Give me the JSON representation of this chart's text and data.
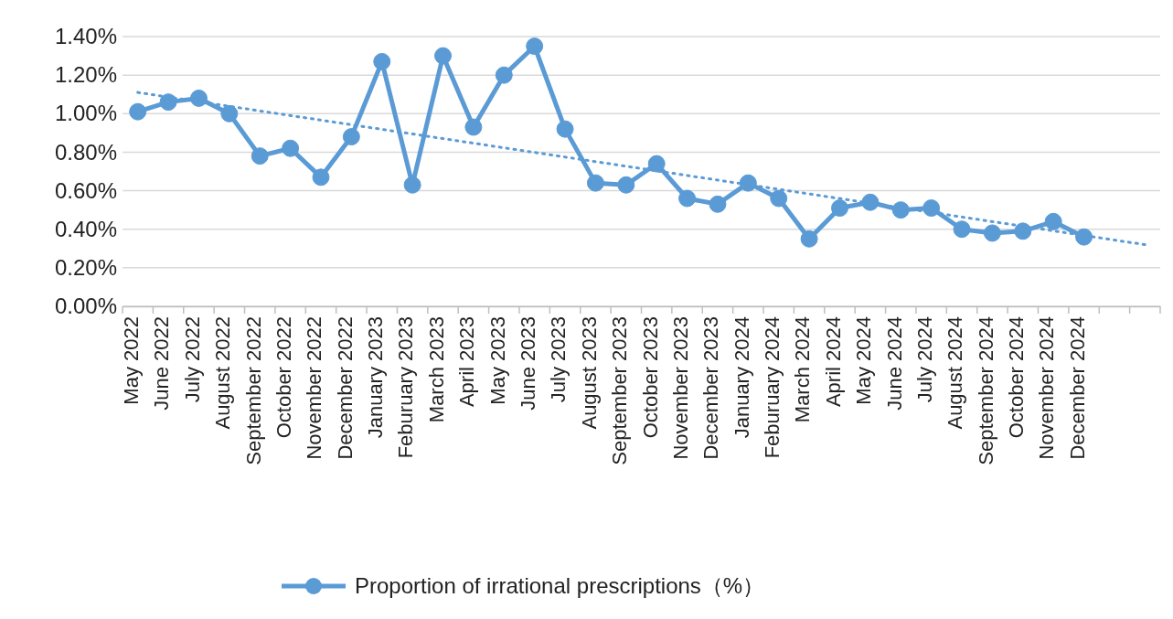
{
  "chart_data": {
    "type": "line",
    "categories": [
      "May 2022",
      "June 2022",
      "July 2022",
      "August 2022",
      "September 2022",
      "October 2022",
      "November 2022",
      "December 2022",
      "January 2023",
      "Feburuary 2023",
      "March 2023",
      "April 2023",
      "May 2023",
      "June 2023",
      "July 2023",
      "August 2023",
      "September 2023",
      "October 2023",
      "November 2023",
      "December 2023",
      "January 2024",
      "Feburuary 2024",
      "March 2024",
      "April 2024",
      "May 2024",
      "June 2024",
      "July 2024",
      "August 2024",
      "September 2024",
      "October 2024",
      "November 2024",
      "December 2024",
      null,
      null
    ],
    "series": [
      {
        "name": "Proportion of irrational prescriptions（%）",
        "color": "#5b9bd5",
        "marker": "circle",
        "line_style": "solid",
        "values": [
          1.01,
          1.06,
          1.08,
          1.0,
          0.78,
          0.82,
          0.67,
          0.88,
          1.27,
          0.63,
          1.3,
          0.93,
          1.2,
          1.35,
          0.92,
          0.64,
          0.63,
          0.74,
          0.56,
          0.53,
          0.64,
          0.56,
          0.35,
          0.51,
          0.54,
          0.5,
          0.51,
          0.4,
          0.38,
          0.39,
          0.44,
          0.36,
          null,
          null
        ]
      },
      {
        "type": "line",
        "color": "#5b9bd5",
        "marker": "none",
        "line_style": "dotted",
        "values": [
          1.11,
          null,
          null,
          null,
          null,
          null,
          null,
          null,
          null,
          null,
          null,
          null,
          null,
          null,
          null,
          null,
          null,
          null,
          null,
          null,
          null,
          null,
          null,
          null,
          null,
          null,
          null,
          null,
          null,
          null,
          null,
          null,
          null,
          0.32
        ]
      }
    ],
    "ylim": [
      0,
      1.4
    ],
    "yticks": [
      {
        "value": 0,
        "label": "0.00%"
      },
      {
        "value": 0.2,
        "label": "0.20%"
      },
      {
        "value": 0.4,
        "label": "0.40%"
      },
      {
        "value": 0.6,
        "label": "0.60%"
      },
      {
        "value": 0.8,
        "label": "0.80%"
      },
      {
        "value": 1.0,
        "label": "1.00%"
      },
      {
        "value": 1.2,
        "label": "1.20%"
      },
      {
        "value": 1.4,
        "label": "1.40%"
      }
    ],
    "grid": "y",
    "legend": "bottom"
  }
}
